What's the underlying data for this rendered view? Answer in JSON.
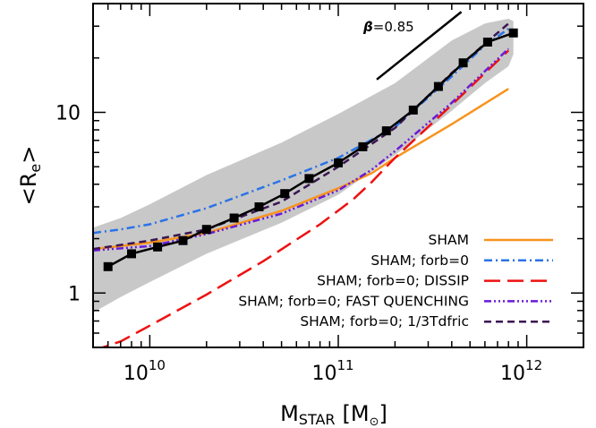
{
  "chart_data": {
    "type": "line",
    "xscale": "log",
    "yscale": "log",
    "xlim": [
      5000000000.0,
      2000000000000.0
    ],
    "ylim": [
      0.5,
      40
    ],
    "xticks": [
      {
        "value": 10000000000.0,
        "base": "10",
        "exp": "10"
      },
      {
        "value": 100000000000.0,
        "base": "10",
        "exp": "11"
      },
      {
        "value": 1000000000000.0,
        "base": "10",
        "exp": "12"
      }
    ],
    "yticks": [
      {
        "value": 1,
        "label": "1"
      },
      {
        "value": 10,
        "label": "10"
      }
    ],
    "xlabel": {
      "main": "M",
      "sub": "STAR",
      "unit_open": "[M",
      "unit_close": "]"
    },
    "ylabel": {
      "main": "<R",
      "sub": "e",
      "close": ">"
    },
    "grid": false,
    "legend_position": "bottom-right",
    "annotation": {
      "symbol": "β",
      "text": "=0.85",
      "slope": 0.85,
      "line_from": [
        160000000000.0,
        15.2
      ],
      "line_to": [
        450000000000.0,
        36
      ]
    },
    "band": {
      "x": [
        5000000000.0,
        7000000000.0,
        10000000000.0,
        20000000000.0,
        50000000000.0,
        100000000000.0,
        200000000000.0,
        400000000000.0,
        600000000000.0,
        800000000000.0,
        850000000000.0
      ],
      "upper": [
        2.3,
        2.6,
        3.1,
        4.5,
        6.8,
        9.8,
        14.5,
        25.0,
        31.0,
        33.0,
        32.0
      ],
      "lower": [
        0.78,
        0.95,
        1.15,
        1.65,
        2.45,
        3.5,
        5.8,
        10.2,
        14.5,
        18.0,
        21.0
      ]
    },
    "series": [
      {
        "name": "SHAM",
        "color": "#f7931e",
        "dash": "",
        "width": 2.5,
        "x": [
          5000000000.0,
          10000000000.0,
          20000000000.0,
          50000000000.0,
          100000000000.0,
          150000000000.0,
          200000000000.0,
          400000000000.0,
          800000000000.0
        ],
        "y": [
          1.75,
          1.9,
          2.15,
          2.85,
          3.8,
          4.6,
          5.6,
          8.6,
          13.5
        ]
      },
      {
        "name": "SHAM; forb=0",
        "color": "#2a73e8",
        "dash": "9,4,2,4",
        "width": 2.5,
        "x": [
          5000000000.0,
          7000000000.0,
          10000000000.0,
          20000000000.0,
          50000000000.0,
          100000000000.0,
          200000000000.0,
          400000000000.0,
          600000000000.0,
          800000000000.0
        ],
        "y": [
          2.15,
          2.25,
          2.4,
          2.95,
          4.2,
          5.6,
          8.3,
          15.8,
          23.5,
          29.0
        ]
      },
      {
        "name": "SHAM; forb=0; DISSIP",
        "color": "#ee1111",
        "dash": "18,8",
        "width": 2.5,
        "x": [
          5000000000.0,
          7000000000.0,
          10000000000.0,
          20000000000.0,
          40000000000.0,
          80000000000.0,
          120000000000.0,
          150000000000.0,
          200000000000.0,
          400000000000.0,
          800000000000.0
        ],
        "y": [
          0.48,
          0.54,
          0.66,
          0.98,
          1.5,
          2.4,
          3.3,
          4.1,
          5.6,
          11.0,
          22.0
        ]
      },
      {
        "name": "SHAM; forb=0; FAST QUENCHING",
        "color": "#6a1ad8",
        "dash": "8,3,2,3,2,3,2,3",
        "width": 2.5,
        "x": [
          5000000000.0,
          10000000000.0,
          20000000000.0,
          50000000000.0,
          100000000000.0,
          150000000000.0,
          200000000000.0,
          400000000000.0,
          800000000000.0
        ],
        "y": [
          1.72,
          1.82,
          2.12,
          2.75,
          3.7,
          4.8,
          6.1,
          11.3,
          22.5
        ]
      },
      {
        "name": "SHAM; forb=0; 1/3Tdfric",
        "color": "#3a1552",
        "dash": "8,5",
        "width": 2.5,
        "x": [
          5000000000.0,
          10000000000.0,
          20000000000.0,
          50000000000.0,
          100000000000.0,
          200000000000.0,
          400000000000.0,
          600000000000.0,
          800000000000.0
        ],
        "y": [
          1.75,
          1.95,
          2.25,
          3.2,
          5.0,
          8.2,
          16.5,
          24.0,
          31.0
        ]
      },
      {
        "name": "",
        "color": "#000000",
        "dash": "",
        "width": 2.5,
        "markers": true,
        "x": [
          6000000000.0,
          8000000000.0,
          11000000000.0,
          15000000000.0,
          20000000000.0,
          28000000000.0,
          38000000000.0,
          52000000000.0,
          70000000000.0,
          100000000000.0,
          135000000000.0,
          180000000000.0,
          250000000000.0,
          340000000000.0,
          460000000000.0,
          620000000000.0,
          850000000000.0
        ],
        "y": [
          1.4,
          1.65,
          1.8,
          1.95,
          2.25,
          2.6,
          3.0,
          3.55,
          4.3,
          5.25,
          6.45,
          7.9,
          10.3,
          13.9,
          18.8,
          24.5,
          27.5
        ]
      }
    ],
    "legend": [
      {
        "label": "SHAM",
        "series": 0
      },
      {
        "label": "SHAM; forb=0",
        "series": 1
      },
      {
        "label": "SHAM; forb=0; DISSIP",
        "series": 2
      },
      {
        "label": "SHAM; forb=0; FAST QUENCHING",
        "series": 3
      },
      {
        "label": "SHAM; forb=0; 1/3Tdfric",
        "series": 4
      }
    ],
    "colors": {
      "band": "#c8c8c8",
      "axes": "#000000"
    }
  }
}
